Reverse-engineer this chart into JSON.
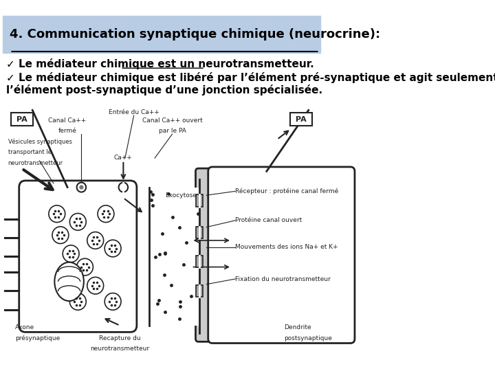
{
  "bg_color": "#ffffff",
  "title_bg_color": "#b8cce4",
  "title_text": "4. Communication synaptique chimique (neurocrine):",
  "title_fontsize": 13,
  "bullet1": "✓ Le médiateur chimique est un neurotransmetteur.",
  "bullet2_line1": "✓ Le médiateur chimique est libéré par l’élément pré-synaptique et agit seulement sur",
  "bullet2_line2": "l’élément post-synaptique d’une jonction spécialisée.",
  "text_fontsize": 11,
  "text_color": "#000000",
  "nerve_color": "#222222",
  "title_bg": "#b8cce4",
  "diagram_bg": "#ffffff"
}
